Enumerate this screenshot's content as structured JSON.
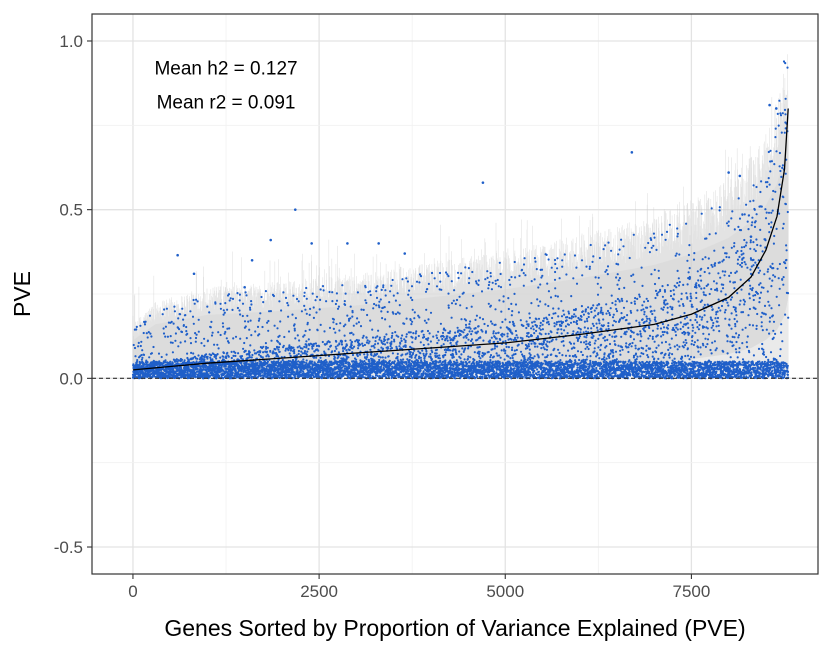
{
  "chart_data": {
    "type": "scatter",
    "xlabel": "Genes Sorted by Proportion of Variance Explained (PVE)",
    "ylabel": "PVE",
    "xlim": [
      -550,
      9200
    ],
    "ylim": [
      -0.58,
      1.08
    ],
    "x_ticks": [
      0,
      2500,
      5000,
      7500
    ],
    "x_tick_labels": [
      "0",
      "2500",
      "5000",
      "7500"
    ],
    "y_ticks": [
      -0.5,
      0.0,
      0.5,
      1.0
    ],
    "y_tick_labels": [
      "-0.5",
      "0.0",
      "0.5",
      "1.0"
    ],
    "grid": true,
    "legend": "none",
    "reference_line": {
      "y": 0,
      "style": "dashed",
      "color": "#333333"
    },
    "n_genes": 8800,
    "annotations": [
      {
        "label": "Mean h2 = ",
        "value": "0.127",
        "x": 1250,
        "y": 0.9
      },
      {
        "label": "Mean r2 = ",
        "value": "0.091",
        "x": 1250,
        "y": 0.8
      }
    ],
    "series": [
      {
        "kind": "line",
        "color": "#000000",
        "x": [
          0,
          500,
          1000,
          2000,
          3000,
          4000,
          5000,
          6000,
          7000,
          7500,
          8000,
          8300,
          8500,
          8650,
          8750,
          8800
        ],
        "y": [
          0.025,
          0.035,
          0.045,
          0.06,
          0.075,
          0.09,
          0.105,
          0.13,
          0.16,
          0.19,
          0.24,
          0.3,
          0.38,
          0.48,
          0.62,
          0.8
        ]
      },
      {
        "kind": "band_upper",
        "color": "#cccccc",
        "x": [
          0,
          300,
          1000,
          2000,
          3000,
          4000,
          5000,
          6000,
          7000,
          7500,
          8000,
          8300,
          8500,
          8650,
          8750,
          8800
        ],
        "y": [
          0.14,
          0.2,
          0.235,
          0.25,
          0.27,
          0.3,
          0.33,
          0.37,
          0.42,
          0.46,
          0.52,
          0.58,
          0.64,
          0.72,
          0.82,
          0.9
        ]
      },
      {
        "kind": "points",
        "color": "#1f5fc9",
        "x": [
          600,
          820,
          1500,
          1600,
          1850,
          2180,
          2400,
          2880,
          3300,
          3650,
          4700,
          6700,
          8000,
          8150,
          8300,
          8550,
          8640
        ],
        "y": [
          0.365,
          0.31,
          0.27,
          0.35,
          0.41,
          0.5,
          0.4,
          0.4,
          0.4,
          0.37,
          0.58,
          0.67,
          0.61,
          0.6,
          0.42,
          0.81,
          0.8
        ]
      }
    ]
  }
}
